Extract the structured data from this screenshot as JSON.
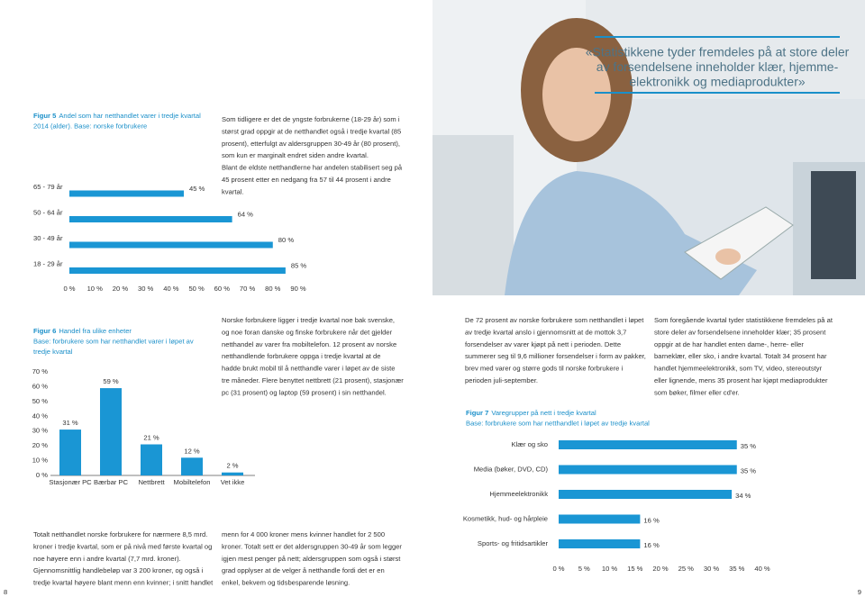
{
  "quote": {
    "lines": [
      "«Statistikkene tyder fremdeles på at store deler",
      "av forsendelsene inneholder klær, hjemme-",
      "elektronikk og mediaprodukter»"
    ]
  },
  "text_blocks": [
    {
      "lines": [
        "Som tidligere er det de yngste forbrukerne (18-29 år) som i",
        "størst grad oppgir at de netthandlet også i tredje kvartal (85",
        "prosent), etterfulgt av aldersgruppen 30-49 år (80 prosent),",
        "som kun er marginalt endret siden andre kvartal.",
        "Blant de eldste netthandlerne har andelen stabilisert seg på",
        "45 prosent etter en nedgang fra 57 til 44 prosent i andre",
        "kvartal."
      ]
    },
    {
      "lines": [
        "Norske forbrukere ligger i tredje kvartal noe bak svenske,",
        "og noe foran danske og finske forbrukere når det gjelder",
        "netthandel av varer fra mobiltelefon. 12 prosent av norske",
        "netthandlende forbrukere oppga i tredje kvartal at de",
        "hadde brukt mobil til å netthandle varer i løpet av de siste",
        "tre måneder. Flere benyttet nettbrett (21 prosent), stasjonær",
        "pc (31 prosent) og laptop (59 prosent) i sin netthandel."
      ]
    },
    {
      "lines": [
        "De 72 prosent av norske forbrukere som netthandlet i løpet",
        "av tredje kvartal anslo i gjennomsnitt at de mottok 3,7",
        "forsendelser av varer kjøpt på nett i perioden. Dette",
        "summerer seg til 9,6 millioner forsendelser i form av pakker,",
        "brev med varer og større gods til norske forbrukere i",
        "perioden juli-september."
      ]
    },
    {
      "lines": [
        "Som foregående kvartal tyder statistikkene fremdeles på at",
        "store deler av forsendelsene inneholder klær; 35 prosent",
        "oppgir at de har handlet enten dame-, herre- eller",
        "barneklær, eller sko, i andre kvartal. Totalt 34 prosent har",
        "handlet hjemmeelektronikk, som TV, video, stereoutstyr",
        "eller lignende, mens 35 prosent har kjøpt mediaprodukter",
        "som bøker, filmer eller cd'er."
      ]
    },
    {
      "lines": [
        "Totalt netthandlet norske forbrukere for nærmere 8,5 mrd.",
        "kroner i tredje kvartal, som er på nivå med første kvartal og",
        "noe høyere enn i andre kvartal (7,7 mrd. kroner).",
        "Gjennomsnittlig handlebeløp var 3 200 kroner, og også i",
        "tredje kvartal høyere blant menn enn kvinner; i snitt handlet"
      ]
    },
    {
      "lines": [
        "menn for 4 000 kroner mens kvinner handlet for 2 500",
        "kroner. Totalt sett er det aldersgruppen 30-49 år som legger",
        "igjen mest penger på nett; aldersgruppen som også i størst",
        "grad opplyser at de velger å netthandle fordi det er en",
        "enkel, bekvem og tidsbesparende løsning."
      ]
    }
  ],
  "page_numbers": [
    "8",
    "9"
  ],
  "chart_data": [
    {
      "type": "hbar",
      "figure_label": "Figur 5",
      "caption_lines": [
        "Andel som har netthandlet varer i tredje kvartal",
        "2014 (alder). Base: norske forbrukere"
      ],
      "categories": [
        "65 - 79 år",
        "50 - 64 år",
        "30 - 49 år",
        "18 - 29 år"
      ],
      "values": [
        45,
        64,
        80,
        85
      ],
      "value_labels": [
        "45 %",
        "64 %",
        "80 %",
        "85 %"
      ],
      "color": "#1a96d4",
      "xlim": [
        0,
        90
      ],
      "xticks": [
        {
          "value": 0,
          "label": "0 %"
        },
        {
          "value": 10,
          "label": "10 %"
        },
        {
          "value": 20,
          "label": "20 %"
        },
        {
          "value": 30,
          "label": "30 %"
        },
        {
          "value": 40,
          "label": "40 %"
        },
        {
          "value": 50,
          "label": "50 %"
        },
        {
          "value": 60,
          "label": "60 %"
        },
        {
          "value": 70,
          "label": "70 %"
        },
        {
          "value": 80,
          "label": "80 %"
        },
        {
          "value": 90,
          "label": "90 %"
        }
      ]
    },
    {
      "type": "bar",
      "figure_label": "Figur 6",
      "caption_lines": [
        "Handel fra ulike enheter",
        "Base: forbrukere som har netthandlet varer i løpet av",
        "tredje kvartal"
      ],
      "categories": [
        "Stasjonær PC",
        "Bærbar PC",
        "Nettbrett",
        "Mobiltelefon",
        "Vet ikke"
      ],
      "values": [
        31,
        59,
        21,
        12,
        2
      ],
      "value_labels": [
        "31 %",
        "59 %",
        "21 %",
        "12 %",
        "2 %"
      ],
      "color": "#1a96d4",
      "ylim": [
        0,
        70
      ],
      "yticks": [
        {
          "value": 0,
          "label": "0 %"
        },
        {
          "value": 10,
          "label": "10 %"
        },
        {
          "value": 20,
          "label": "20 %"
        },
        {
          "value": 30,
          "label": "30 %"
        },
        {
          "value": 40,
          "label": "40 %"
        },
        {
          "value": 50,
          "label": "50 %"
        },
        {
          "value": 60,
          "label": "60 %"
        },
        {
          "value": 70,
          "label": "70 %"
        }
      ]
    },
    {
      "type": "hbar",
      "figure_label": "Figur 7",
      "caption_lines": [
        "Varegrupper på nett i tredje kvartal",
        "Base: forbrukere som har  netthandlet i løpet av tredje kvartal"
      ],
      "categories": [
        "Klær og sko",
        "Media (bøker, DVD, CD)",
        "Hjemmeelektronikk",
        "Kosmetikk, hud- og hårpleie",
        "Sports- og fritidsartikler"
      ],
      "values": [
        35,
        35,
        34,
        16,
        16
      ],
      "value_labels": [
        "35 %",
        "35 %",
        "34 %",
        "16 %",
        "16 %"
      ],
      "color": "#1a96d4",
      "xlim": [
        0,
        40
      ],
      "xticks": [
        {
          "value": 0,
          "label": "0 %"
        },
        {
          "value": 5,
          "label": "5 %"
        },
        {
          "value": 10,
          "label": "10 %"
        },
        {
          "value": 15,
          "label": "15 %"
        },
        {
          "value": 20,
          "label": "20 %"
        },
        {
          "value": 25,
          "label": "25 %"
        },
        {
          "value": 30,
          "label": "30 %"
        },
        {
          "value": 35,
          "label": "35 %"
        },
        {
          "value": 40,
          "label": "40 %"
        }
      ]
    }
  ]
}
